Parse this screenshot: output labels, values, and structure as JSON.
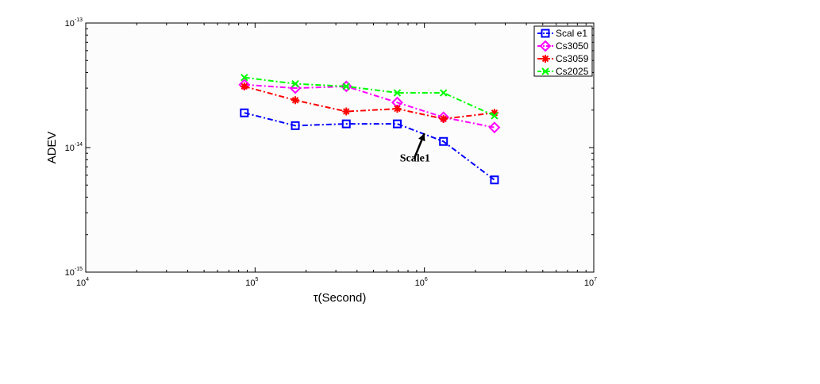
{
  "chart_data": {
    "type": "line",
    "x_scale": "log",
    "y_scale": "log",
    "xlim": [
      10000,
      10000000
    ],
    "ylim": [
      1e-15,
      1e-13
    ],
    "xlabel": "τ(Second)",
    "ylabel": "ADEV",
    "x_ticks": [
      {
        "value": 10000,
        "base": "10",
        "exp": "4"
      },
      {
        "value": 100000,
        "base": "10",
        "exp": "5"
      },
      {
        "value": 1000000,
        "base": "10",
        "exp": "6"
      },
      {
        "value": 10000000,
        "base": "10",
        "exp": "7"
      }
    ],
    "y_ticks": [
      {
        "value": 1e-15,
        "base": "10",
        "exp": "-15"
      },
      {
        "value": 1e-14,
        "base": "10",
        "exp": "-14"
      },
      {
        "value": 1e-13,
        "base": "10",
        "exp": "-13"
      }
    ],
    "grid": false,
    "legend_position": "top-right",
    "x": [
      86400,
      172800,
      345600,
      691200,
      1296000,
      2592000
    ],
    "series": [
      {
        "name": "Scal e1",
        "color": "#0000ff",
        "marker": "square",
        "dash": "dashdot",
        "values": [
          1.9e-14,
          1.5e-14,
          1.55e-14,
          1.55e-14,
          1.12e-14,
          5.5e-15
        ]
      },
      {
        "name": "Cs3050",
        "color": "#ff00ff",
        "marker": "diamond",
        "dash": "dashdot",
        "values": [
          3.2e-14,
          3e-14,
          3.1e-14,
          2.3e-14,
          1.75e-14,
          1.45e-14
        ]
      },
      {
        "name": "Cs3059",
        "color": "#ff0000",
        "marker": "star",
        "dash": "dashdot",
        "values": [
          3.1e-14,
          2.4e-14,
          1.95e-14,
          2.05e-14,
          1.7e-14,
          1.9e-14
        ]
      },
      {
        "name": "Cs2025",
        "color": "#00ff00",
        "marker": "x",
        "dash": "dashdot",
        "values": [
          3.65e-14,
          3.25e-14,
          3.1e-14,
          2.75e-14,
          2.75e-14,
          1.8e-14
        ]
      }
    ],
    "annotation": {
      "text": "Scale1",
      "arrow_target": {
        "x": 1000000,
        "y": 1.3e-14
      },
      "text_at": {
        "x": 880000,
        "y": 8.3e-15
      }
    }
  }
}
